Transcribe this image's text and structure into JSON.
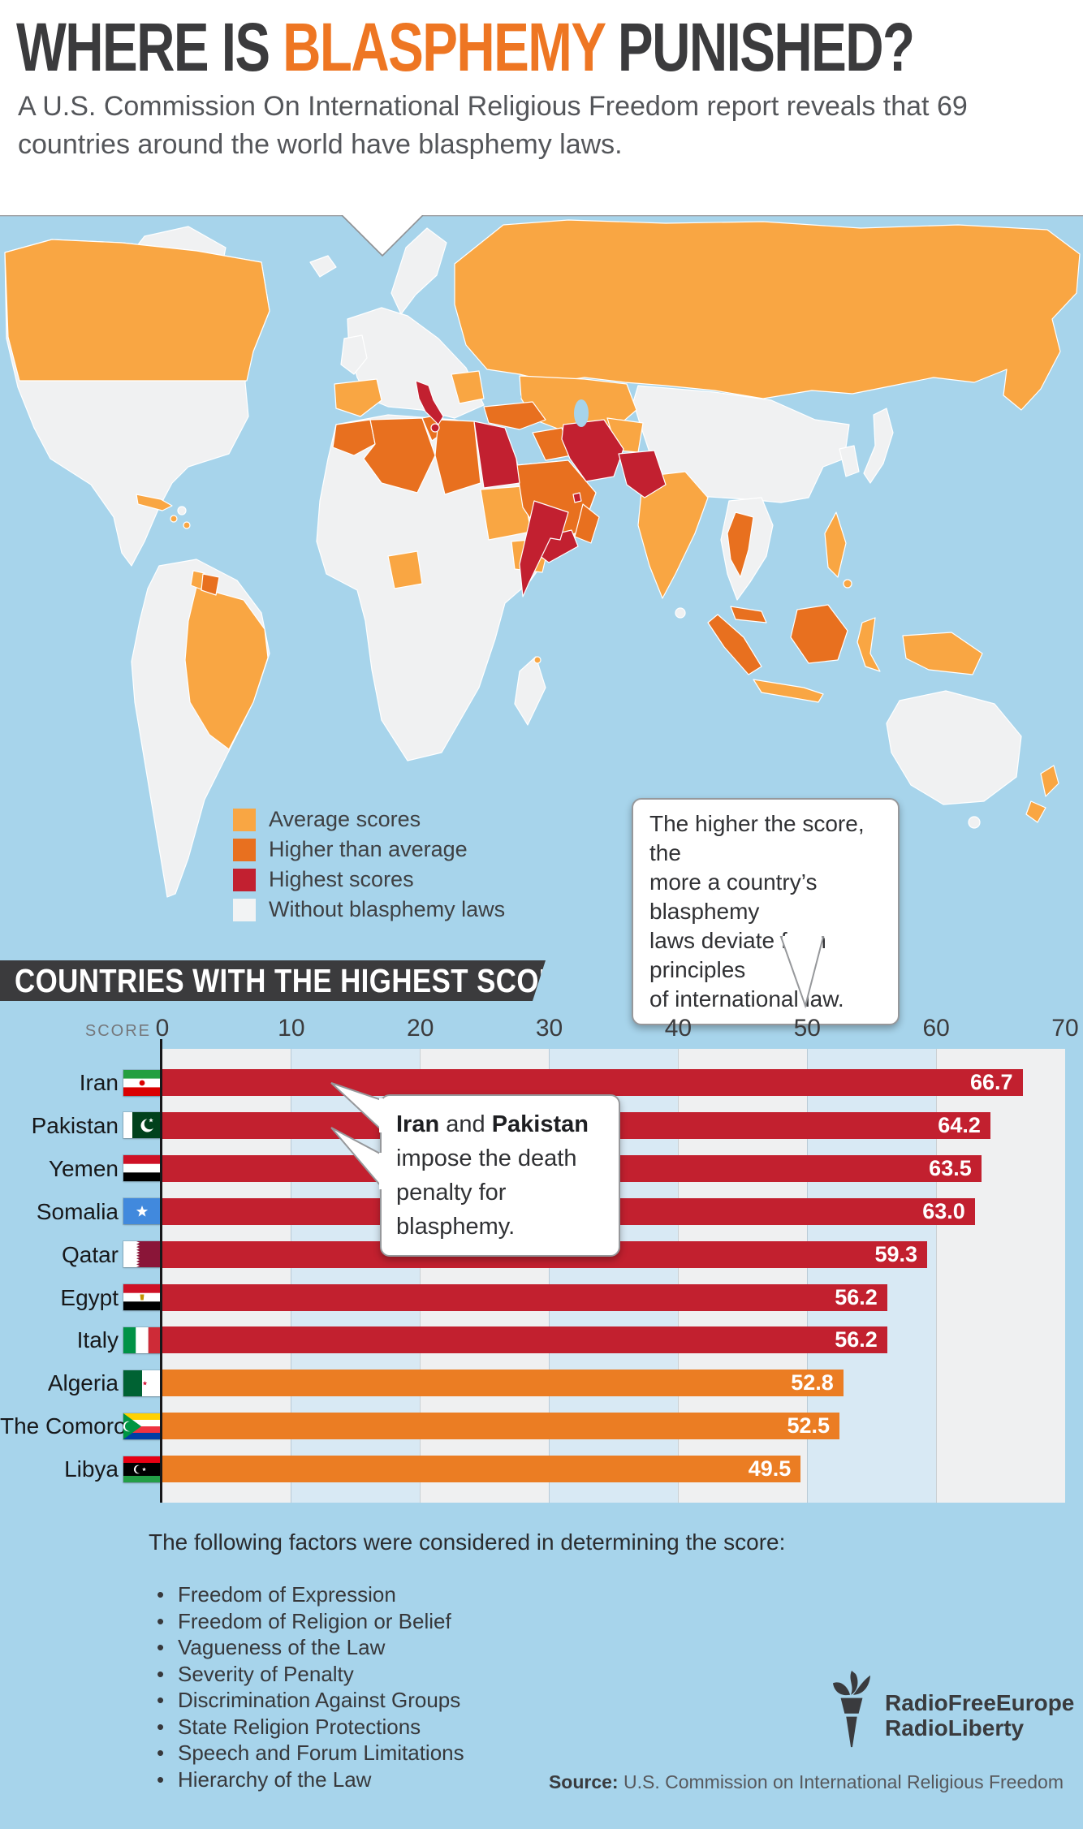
{
  "header": {
    "title_part1": "WHERE IS ",
    "title_accent": "BLASPHEMY",
    "title_part2": " PUNISHED?",
    "subtitle": "A U.S. Commission On International Religious Freedom report reveals that 69 countries around the world have blasphemy laws."
  },
  "map": {
    "legend": [
      {
        "label": "Average scores",
        "color": "#F9A643",
        "key": "avg"
      },
      {
        "label": "Higher than average",
        "color": "#E8701F",
        "key": "hi"
      },
      {
        "label": "Highest scores",
        "color": "#C22030",
        "key": "top"
      },
      {
        "label": "Without blasphemy laws",
        "color": "#F2F3F4",
        "key": "none"
      }
    ],
    "callout_lines": [
      "The higher the score, the",
      "more a country’s blasphemy",
      "laws deviate from principles",
      "of international law."
    ]
  },
  "chart_data": {
    "type": "bar",
    "title": "COUNTRIES WITH THE HIGHEST SCORES",
    "axis_label": "SCORE",
    "xlim": [
      0,
      70
    ],
    "ticks": [
      "0",
      "10",
      "20",
      "30",
      "40",
      "50",
      "60",
      "70"
    ],
    "band_colors": [
      "#EFF0F1",
      "#D8E9F4",
      "#EFF0F1",
      "#D8E9F4",
      "#EFF0F1",
      "#D8E9F4",
      "#EFF0F1"
    ],
    "bar_colors": {
      "highest": "#C2202F",
      "higher": "#EB7D23"
    },
    "rows": [
      {
        "country": "Iran",
        "value": 66.7,
        "value_label": "66.7",
        "level": "highest",
        "flag": "iran"
      },
      {
        "country": "Pakistan",
        "value": 64.2,
        "value_label": "64.2",
        "level": "highest",
        "flag": "pakistan"
      },
      {
        "country": "Yemen",
        "value": 63.5,
        "value_label": "63.5",
        "level": "highest",
        "flag": "yemen"
      },
      {
        "country": "Somalia",
        "value": 63.0,
        "value_label": "63.0",
        "level": "highest",
        "flag": "somalia"
      },
      {
        "country": "Qatar",
        "value": 59.3,
        "value_label": "59.3",
        "level": "highest",
        "flag": "qatar"
      },
      {
        "country": "Egypt",
        "value": 56.2,
        "value_label": "56.2",
        "level": "highest",
        "flag": "egypt"
      },
      {
        "country": "Italy",
        "value": 56.2,
        "value_label": "56.2",
        "level": "highest",
        "flag": "italy"
      },
      {
        "country": "Algeria",
        "value": 52.8,
        "value_label": "52.8",
        "level": "higher",
        "flag": "algeria"
      },
      {
        "country": "The Comoros",
        "value": 52.5,
        "value_label": "52.5",
        "level": "higher",
        "flag": "comoros"
      },
      {
        "country": "Libya",
        "value": 49.5,
        "value_label": "49.5",
        "level": "higher",
        "flag": "libya"
      }
    ],
    "callout_lines": [
      [
        {
          "t": "Iran",
          "b": true
        },
        {
          "t": " and ",
          "b": false
        },
        {
          "t": "Pakistan",
          "b": true
        }
      ],
      [
        {
          "t": "impose the death",
          "b": false
        }
      ],
      [
        {
          "t": "penalty for blasphemy.",
          "b": false
        }
      ]
    ]
  },
  "factors": {
    "heading": "The following factors were considered in determining the score:",
    "items": [
      "Freedom of Expression",
      "Freedom of Religion or Belief",
      "Vagueness of the Law",
      "Severity of Penalty",
      "Discrimination Against Groups",
      "State Religion Protections",
      "Speech and Forum Limitations",
      "Hierarchy of the Law"
    ]
  },
  "footer": {
    "logo_line1": "RadioFreeEurope",
    "logo_line2": "RadioLiberty",
    "source_label": "Source:",
    "source_text": " U.S. Commission on International Religious Freedom"
  }
}
